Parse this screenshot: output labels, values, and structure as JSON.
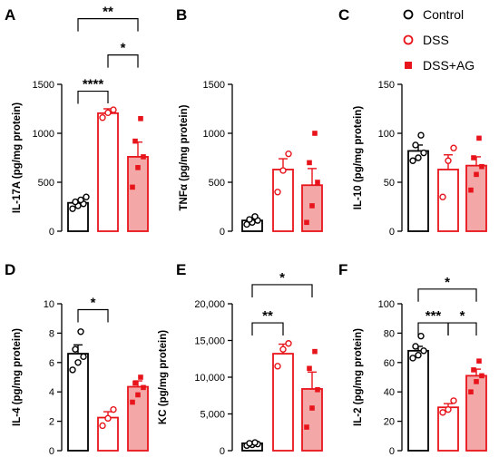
{
  "legend": {
    "items": [
      {
        "label": "Control",
        "color": "#000000",
        "marker": "open-circle"
      },
      {
        "label": "DSS",
        "color": "#e8141b",
        "marker": "open-circle"
      },
      {
        "label": "DSS+AG",
        "color": "#e8141b",
        "marker": "filled-square"
      }
    ],
    "placement": "top-right"
  },
  "colors": {
    "control": "#000000",
    "dss": "#e8141b",
    "dss_ag_fill": "#f4a7a7"
  },
  "chart_data": [
    {
      "panel": "A",
      "type": "bar",
      "ylabel": "IL-17A (pg/mg protein)",
      "ylim": [
        0,
        1500
      ],
      "yticks": [
        0,
        500,
        1000,
        1500
      ],
      "tick_labels": [
        "0",
        "500",
        "1000",
        "1500"
      ],
      "series": [
        {
          "name": "Control",
          "mean": 290,
          "sem": 30,
          "points": [
            230,
            260,
            280,
            300,
            320,
            350
          ]
        },
        {
          "name": "DSS",
          "mean": 1205,
          "sem": 45,
          "points": [
            1160,
            1210,
            1240
          ]
        },
        {
          "name": "DSS+AG",
          "mean": 760,
          "sem": 150,
          "points": [
            450,
            650,
            760,
            920,
            1150
          ]
        }
      ],
      "significance": [
        {
          "from": 0,
          "to": 1,
          "label": "****",
          "y": 1430
        },
        {
          "from": 1,
          "to": 2,
          "label": "*",
          "y": 1800
        },
        {
          "from": 0,
          "to": 2,
          "label": "**",
          "y": 2170
        }
      ]
    },
    {
      "panel": "B",
      "type": "bar",
      "ylabel": "TNFα (pg/mg protein)",
      "ylim": [
        0,
        1500
      ],
      "yticks": [
        0,
        500,
        1000,
        1500
      ],
      "tick_labels": [
        "0",
        "500",
        "1000",
        "1500"
      ],
      "series": [
        {
          "name": "Control",
          "mean": 110,
          "sem": 20,
          "points": [
            70,
            90,
            110,
            120,
            150
          ]
        },
        {
          "name": "DSS",
          "mean": 630,
          "sem": 110,
          "points": [
            400,
            620,
            790
          ]
        },
        {
          "name": "DSS+AG",
          "mean": 470,
          "sem": 170,
          "points": [
            90,
            260,
            500,
            700,
            1000
          ]
        }
      ],
      "significance": []
    },
    {
      "panel": "C",
      "type": "bar",
      "ylabel": "IL-10 (pg/mg protein)",
      "ylim": [
        0,
        150
      ],
      "yticks": [
        0,
        50,
        100,
        150
      ],
      "tick_labels": [
        "0",
        "50",
        "100",
        "150"
      ],
      "series": [
        {
          "name": "Control",
          "mean": 82,
          "sem": 6,
          "points": [
            72,
            75,
            80,
            88,
            98
          ]
        },
        {
          "name": "DSS",
          "mean": 63,
          "sem": 15,
          "points": [
            35,
            72,
            85
          ]
        },
        {
          "name": "DSS+AG",
          "mean": 67,
          "sem": 9,
          "points": [
            42,
            58,
            66,
            75,
            95
          ]
        }
      ],
      "significance": []
    },
    {
      "panel": "D",
      "type": "bar",
      "ylabel": "IL-4 (pg/mg protein)",
      "ylim": [
        0,
        10
      ],
      "yticks": [
        0,
        2,
        4,
        6,
        8,
        10
      ],
      "tick_labels": [
        "0",
        "2",
        "4",
        "6",
        "8",
        "10"
      ],
      "series": [
        {
          "name": "Control",
          "mean": 6.6,
          "sem": 0.6,
          "points": [
            5.5,
            6.0,
            6.4,
            6.9,
            8.1
          ]
        },
        {
          "name": "DSS",
          "mean": 2.25,
          "sem": 0.4,
          "points": [
            1.7,
            2.2,
            2.8
          ]
        },
        {
          "name": "DSS+AG",
          "mean": 4.35,
          "sem": 0.4,
          "points": [
            3.3,
            3.8,
            4.3,
            4.6,
            5.0
          ]
        }
      ],
      "significance": [
        {
          "from": 0,
          "to": 1,
          "label": "*",
          "y": 9.6
        }
      ]
    },
    {
      "panel": "E",
      "type": "bar",
      "ylabel": "KC (pg/mg protein)",
      "ylim": [
        0,
        20000
      ],
      "yticks": [
        0,
        5000,
        10000,
        15000,
        20000
      ],
      "tick_labels": [
        "0",
        "5,000",
        "10,000",
        "15,000",
        "20,000"
      ],
      "series": [
        {
          "name": "Control",
          "mean": 1000,
          "sem": 150,
          "points": [
            700,
            800,
            900,
            1000,
            1100
          ]
        },
        {
          "name": "DSS",
          "mean": 13200,
          "sem": 1300,
          "points": [
            11500,
            13800,
            14600
          ]
        },
        {
          "name": "DSS+AG",
          "mean": 8400,
          "sem": 2300,
          "points": [
            3200,
            5800,
            8300,
            11200,
            13500
          ]
        }
      ],
      "significance": [
        {
          "from": 0,
          "to": 1,
          "label": "**",
          "y": 17400
        },
        {
          "from": 0,
          "to": 2,
          "label": "*",
          "y": 22600
        }
      ]
    },
    {
      "panel": "F",
      "type": "bar",
      "ylabel": "IL-2 (pg/mg protein)",
      "ylim": [
        0,
        100
      ],
      "yticks": [
        0,
        20,
        40,
        60,
        80,
        100
      ],
      "tick_labels": [
        "0",
        "20",
        "40",
        "60",
        "80",
        "100"
      ],
      "series": [
        {
          "name": "Control",
          "mean": 68,
          "sem": 3,
          "points": [
            63,
            65,
            68,
            71,
            78
          ]
        },
        {
          "name": "DSS",
          "mean": 29.5,
          "sem": 2.5,
          "points": [
            26,
            28,
            34
          ]
        },
        {
          "name": "DSS+AG",
          "mean": 51,
          "sem": 4.5,
          "points": [
            40,
            47,
            51,
            55,
            61
          ]
        }
      ],
      "significance": [
        {
          "from": 0,
          "to": 1,
          "label": "***",
          "y": 87
        },
        {
          "from": 1,
          "to": 2,
          "label": "*",
          "y": 87
        },
        {
          "from": 0,
          "to": 2,
          "label": "*",
          "y": 110
        }
      ]
    }
  ]
}
